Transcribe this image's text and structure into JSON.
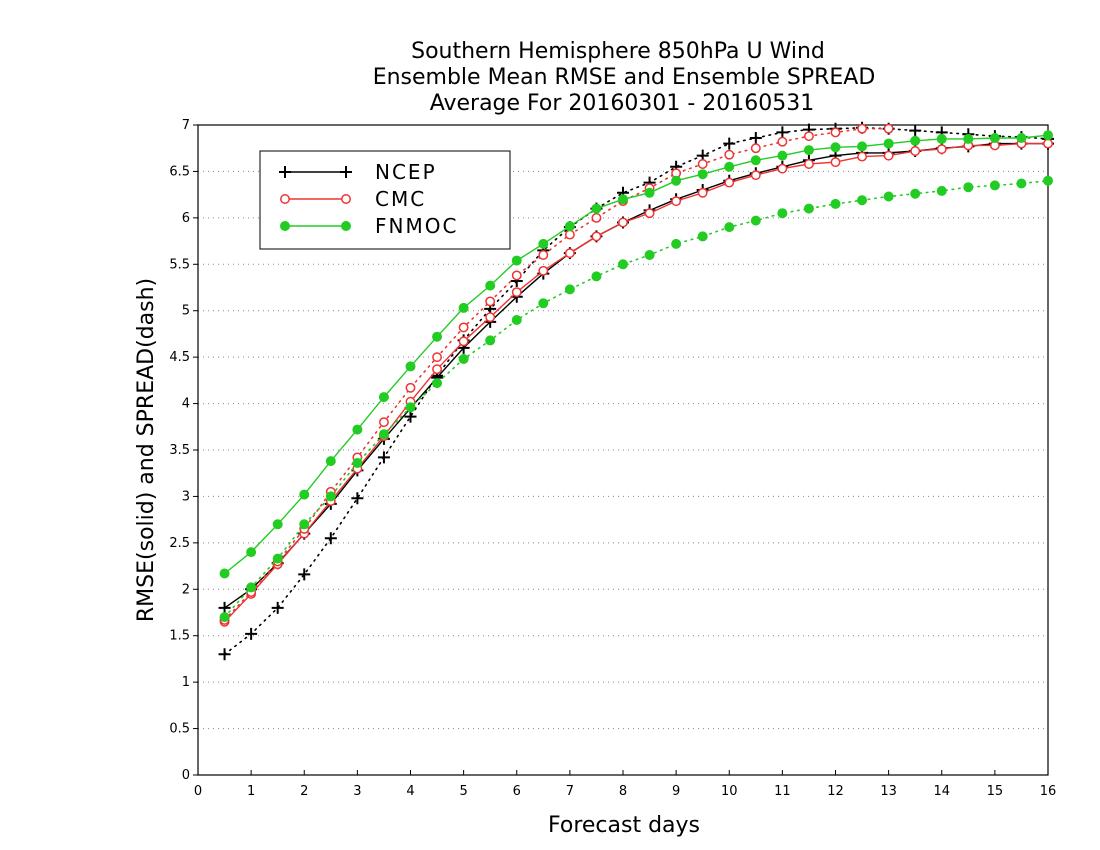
{
  "chart_data": {
    "type": "line",
    "title": [
      "Southern Hemisphere 850hPa U Wind",
      "Ensemble Mean RMSE and Ensemble SPREAD",
      "Average For 20160301 - 20160531"
    ],
    "xlabel": "Forecast days",
    "ylabel": "RMSE(solid) and SPREAD(dash)",
    "xlim": [
      0,
      16
    ],
    "ylim": [
      0,
      7
    ],
    "xticks": [
      "0",
      "1",
      "2",
      "3",
      "4",
      "5",
      "6",
      "7",
      "8",
      "9",
      "10",
      "11",
      "12",
      "13",
      "14",
      "15",
      "16"
    ],
    "yticks": [
      "0",
      "0.5",
      "1",
      "1.5",
      "2",
      "2.5",
      "3",
      "3.5",
      "4",
      "4.5",
      "5",
      "5.5",
      "6",
      "6.5",
      "7"
    ],
    "grid": "horizontal-dotted",
    "legend_position": "top-left",
    "x": [
      0.5,
      1,
      1.5,
      2,
      2.5,
      3,
      3.5,
      4,
      4.5,
      5,
      5.5,
      6,
      6.5,
      7,
      7.5,
      8,
      8.5,
      9,
      9.5,
      10,
      10.5,
      11,
      11.5,
      12,
      12.5,
      13,
      13.5,
      14,
      14.5,
      15,
      15.5,
      16
    ],
    "series": [
      {
        "name": "NCEP",
        "metric": "RMSE",
        "style": "solid",
        "marker": "plus",
        "color": "#000000",
        "values": [
          1.8,
          2.0,
          2.28,
          2.6,
          2.92,
          3.28,
          3.62,
          3.95,
          4.28,
          4.6,
          4.88,
          5.15,
          5.4,
          5.62,
          5.8,
          5.95,
          6.08,
          6.2,
          6.3,
          6.4,
          6.48,
          6.55,
          6.62,
          6.67,
          6.7,
          6.7,
          6.72,
          6.75,
          6.77,
          6.8,
          6.8,
          6.8
        ]
      },
      {
        "name": "NCEP",
        "metric": "SPREAD",
        "style": "dotted",
        "marker": "plus",
        "color": "#000000",
        "values": [
          1.3,
          1.52,
          1.8,
          2.16,
          2.55,
          2.98,
          3.42,
          3.86,
          4.3,
          4.68,
          5.02,
          5.32,
          5.65,
          5.9,
          6.1,
          6.27,
          6.38,
          6.55,
          6.67,
          6.8,
          6.86,
          6.92,
          6.95,
          6.96,
          6.97,
          6.96,
          6.94,
          6.92,
          6.9,
          6.88,
          6.87,
          6.85
        ]
      },
      {
        "name": "CMC",
        "metric": "RMSE",
        "style": "solid",
        "marker": "open-circle",
        "color": "#ee3333",
        "values": [
          1.65,
          1.95,
          2.27,
          2.6,
          2.95,
          3.3,
          3.65,
          4.02,
          4.37,
          4.67,
          4.93,
          5.2,
          5.43,
          5.62,
          5.8,
          5.95,
          6.05,
          6.18,
          6.27,
          6.38,
          6.46,
          6.53,
          6.58,
          6.6,
          6.66,
          6.67,
          6.72,
          6.74,
          6.78,
          6.78,
          6.8,
          6.8
        ]
      },
      {
        "name": "CMC",
        "metric": "SPREAD",
        "style": "dotted",
        "marker": "open-circle",
        "color": "#ee3333",
        "values": [
          1.67,
          1.97,
          2.3,
          2.65,
          3.05,
          3.42,
          3.8,
          4.17,
          4.5,
          4.82,
          5.1,
          5.38,
          5.6,
          5.82,
          6.0,
          6.18,
          6.32,
          6.48,
          6.58,
          6.68,
          6.75,
          6.82,
          6.88,
          6.92,
          6.96,
          6.96,
          null,
          null,
          null,
          null,
          null,
          null
        ]
      },
      {
        "name": "FNMOC",
        "metric": "RMSE",
        "style": "solid",
        "marker": "filled-circle",
        "color": "#22cc22",
        "values": [
          2.17,
          2.4,
          2.7,
          3.02,
          3.38,
          3.72,
          4.07,
          4.4,
          4.72,
          5.03,
          5.27,
          5.54,
          5.72,
          5.91,
          6.1,
          6.2,
          6.27,
          6.4,
          6.47,
          6.55,
          6.62,
          6.67,
          6.73,
          6.76,
          6.77,
          6.8,
          6.83,
          6.85,
          6.85,
          6.86,
          6.86,
          6.89
        ]
      },
      {
        "name": "FNMOC",
        "metric": "SPREAD",
        "style": "dotted",
        "marker": "filled-circle",
        "color": "#22cc22",
        "values": [
          1.7,
          2.02,
          2.33,
          2.7,
          3.0,
          3.36,
          3.67,
          3.96,
          4.22,
          4.48,
          4.68,
          4.9,
          5.08,
          5.23,
          5.37,
          5.5,
          5.6,
          5.72,
          5.8,
          5.9,
          5.97,
          6.05,
          6.1,
          6.15,
          6.19,
          6.23,
          6.26,
          6.29,
          6.33,
          6.35,
          6.37,
          6.4
        ]
      }
    ],
    "legend": [
      {
        "label": "NCEP",
        "marker": "plus",
        "color": "#000000"
      },
      {
        "label": "CMC",
        "marker": "open-circle",
        "color": "#ee3333"
      },
      {
        "label": "FNMOC",
        "marker": "filled-circle",
        "color": "#22cc22"
      }
    ]
  }
}
